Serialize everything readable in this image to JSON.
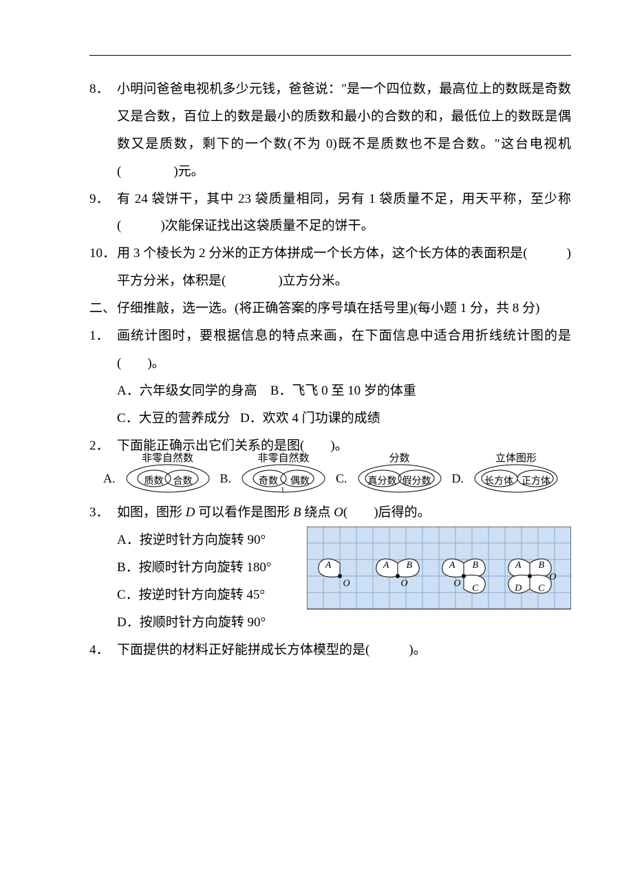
{
  "colors": {
    "text": "#000000",
    "bg": "#ffffff",
    "grid": "#87a7d6",
    "gridfill": "#cddff3"
  },
  "q8": {
    "num": "8．",
    "text": "小明问爸爸电视机多少元钱，爸爸说：\"是一个四位数，最高位上的数既是奇数又是合数，百位上的数是最小的质数和最小的合数的和，最低位上的数既是偶数又是质数，剩下的一个数(不为 0)既不是质数也不是合数。\"这台电视机(　　　　)元。"
  },
  "q9": {
    "num": "9．",
    "text": "有 24 袋饼干，其中 23 袋质量相同，另有 1 袋质量不足，用天平称，至少称(　　　)次能保证找出这袋质量不足的饼干。"
  },
  "q10": {
    "num": "10．",
    "text": "用 3 个棱长为 2 分米的正方体拼成一个长方体，这个长方体的表面积是(　　　)平方分米，体积是(　　　　)立方分米。"
  },
  "sec2": {
    "num": "二、",
    "text": "仔细推敲，选一选。(将正确答案的序号填在括号里)(每小题 1 分，共 8 分)"
  },
  "s2q1": {
    "num": "1．",
    "text": "画统计图时，要根据信息的特点来画，在下面信息中适合用折线统计图的是(　　)。",
    "optA": "A．六年级女同学的身高",
    "optB": "B．飞飞 0 至 10 岁的体重",
    "optC": "C．大豆的营养成分",
    "optD": "D．欢欢 4 门功课的成绩"
  },
  "s2q2": {
    "num": "2．",
    "text": "下面能正确示出它们关系的是图(　　)。",
    "diagrams": {
      "A": {
        "label": "A.",
        "big": "非零自然数",
        "left": "质数",
        "right": "合数",
        "mid": ""
      },
      "B": {
        "label": "B.",
        "big": "非零自然数",
        "left": "奇数",
        "right": "偶数",
        "mid": "1"
      },
      "C": {
        "label": "C.",
        "big": "分数",
        "left": "真分数",
        "right": "假分数",
        "mid": ""
      },
      "D": {
        "label": "D.",
        "big": "立体图形",
        "left": "长方体",
        "right": "正方体",
        "mid": ""
      }
    }
  },
  "s2q3": {
    "num": "3．",
    "text_pre": "如图，图形 ",
    "text_mid1": " 可以看作是图形 ",
    "text_mid2": " 绕点 ",
    "text_post": "(　　)后得的。",
    "D": "D",
    "B": "B",
    "O": "O",
    "optA": "A．按逆时针方向旋转 90°",
    "optB": "B．按顺时针方向旋转 180°",
    "optC": "C．按逆时针方向旋转 45°",
    "optD": "D．按顺时针方向旋转 90°",
    "fig": {
      "cols": 16,
      "rows": 5,
      "cell": 24,
      "letters": {
        "A": "A",
        "B": "B",
        "C": "C",
        "D": "D",
        "O": "O"
      }
    }
  },
  "s2q4": {
    "num": "4．",
    "text": "下面提供的材料正好能拼成长方体模型的是(　　　)。"
  }
}
